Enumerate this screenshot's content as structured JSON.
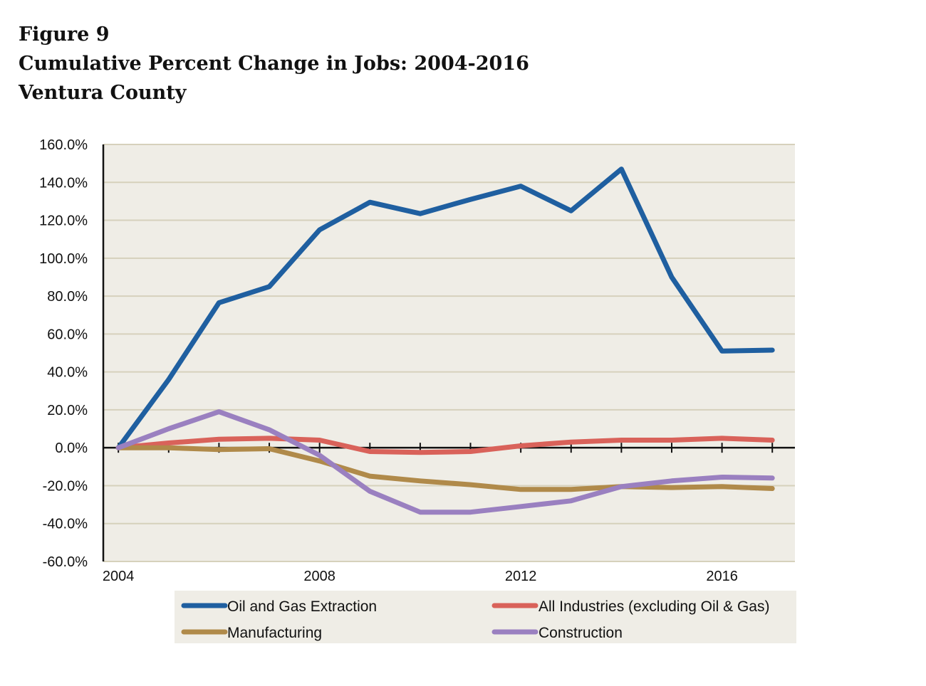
{
  "header": {
    "figure_label": "Figure 9",
    "title": "Cumulative Percent Change in Jobs: 2004-2016",
    "subtitle": "Ventura County"
  },
  "chart_data": {
    "type": "line",
    "title": "Cumulative Percent Change in Jobs: 2004-2016",
    "subtitle": "Ventura County",
    "xlabel": "",
    "ylabel": "",
    "x": [
      2004,
      2005,
      2006,
      2007,
      2008,
      2009,
      2010,
      2011,
      2012,
      2013,
      2014,
      2015,
      2016,
      2017
    ],
    "x_tick_labels": [
      "2004",
      "2008",
      "2012",
      "2016"
    ],
    "x_tick_values": [
      2004,
      2008,
      2012,
      2016
    ],
    "ylim": [
      -60,
      160
    ],
    "y_tick_values": [
      160,
      140,
      120,
      100,
      80,
      60,
      40,
      20,
      0,
      -20,
      -40,
      -60
    ],
    "y_tick_labels": [
      "160.0%",
      "140.0%",
      "120.0%",
      "100.0%",
      "80.0%",
      "60.0%",
      "40.0%",
      "20.0%",
      "0.0%",
      "-20.0%",
      "-40.0%",
      "-60.0%"
    ],
    "grid": true,
    "legend_position": "bottom",
    "plot_background": "#efede6",
    "series": [
      {
        "name": "Oil and Gas Extraction",
        "color": "#1f5fa0",
        "values": [
          0,
          36,
          76.5,
          85,
          115,
          129.5,
          123.5,
          131,
          138,
          125,
          147,
          90,
          51,
          51.5
        ]
      },
      {
        "name": "All Industries (excluding Oil & Gas)",
        "color": "#d9625a",
        "values": [
          0,
          2.5,
          4.5,
          5,
          4,
          -2,
          -2.5,
          -2,
          1,
          3,
          4,
          4,
          5,
          4
        ]
      },
      {
        "name": "Manufacturing",
        "color": "#b08a4a",
        "values": [
          0,
          0,
          -1,
          -0.5,
          -7,
          -15,
          -17.5,
          -19.5,
          -22,
          -22,
          -20.5,
          -21,
          -20.5,
          -21.5
        ]
      },
      {
        "name": "Construction",
        "color": "#9a80c0",
        "values": [
          0,
          10,
          19,
          9.5,
          -4,
          -23,
          -34,
          -34,
          -31,
          -28,
          -20.5,
          -17.5,
          -15.5,
          -16
        ]
      }
    ]
  }
}
